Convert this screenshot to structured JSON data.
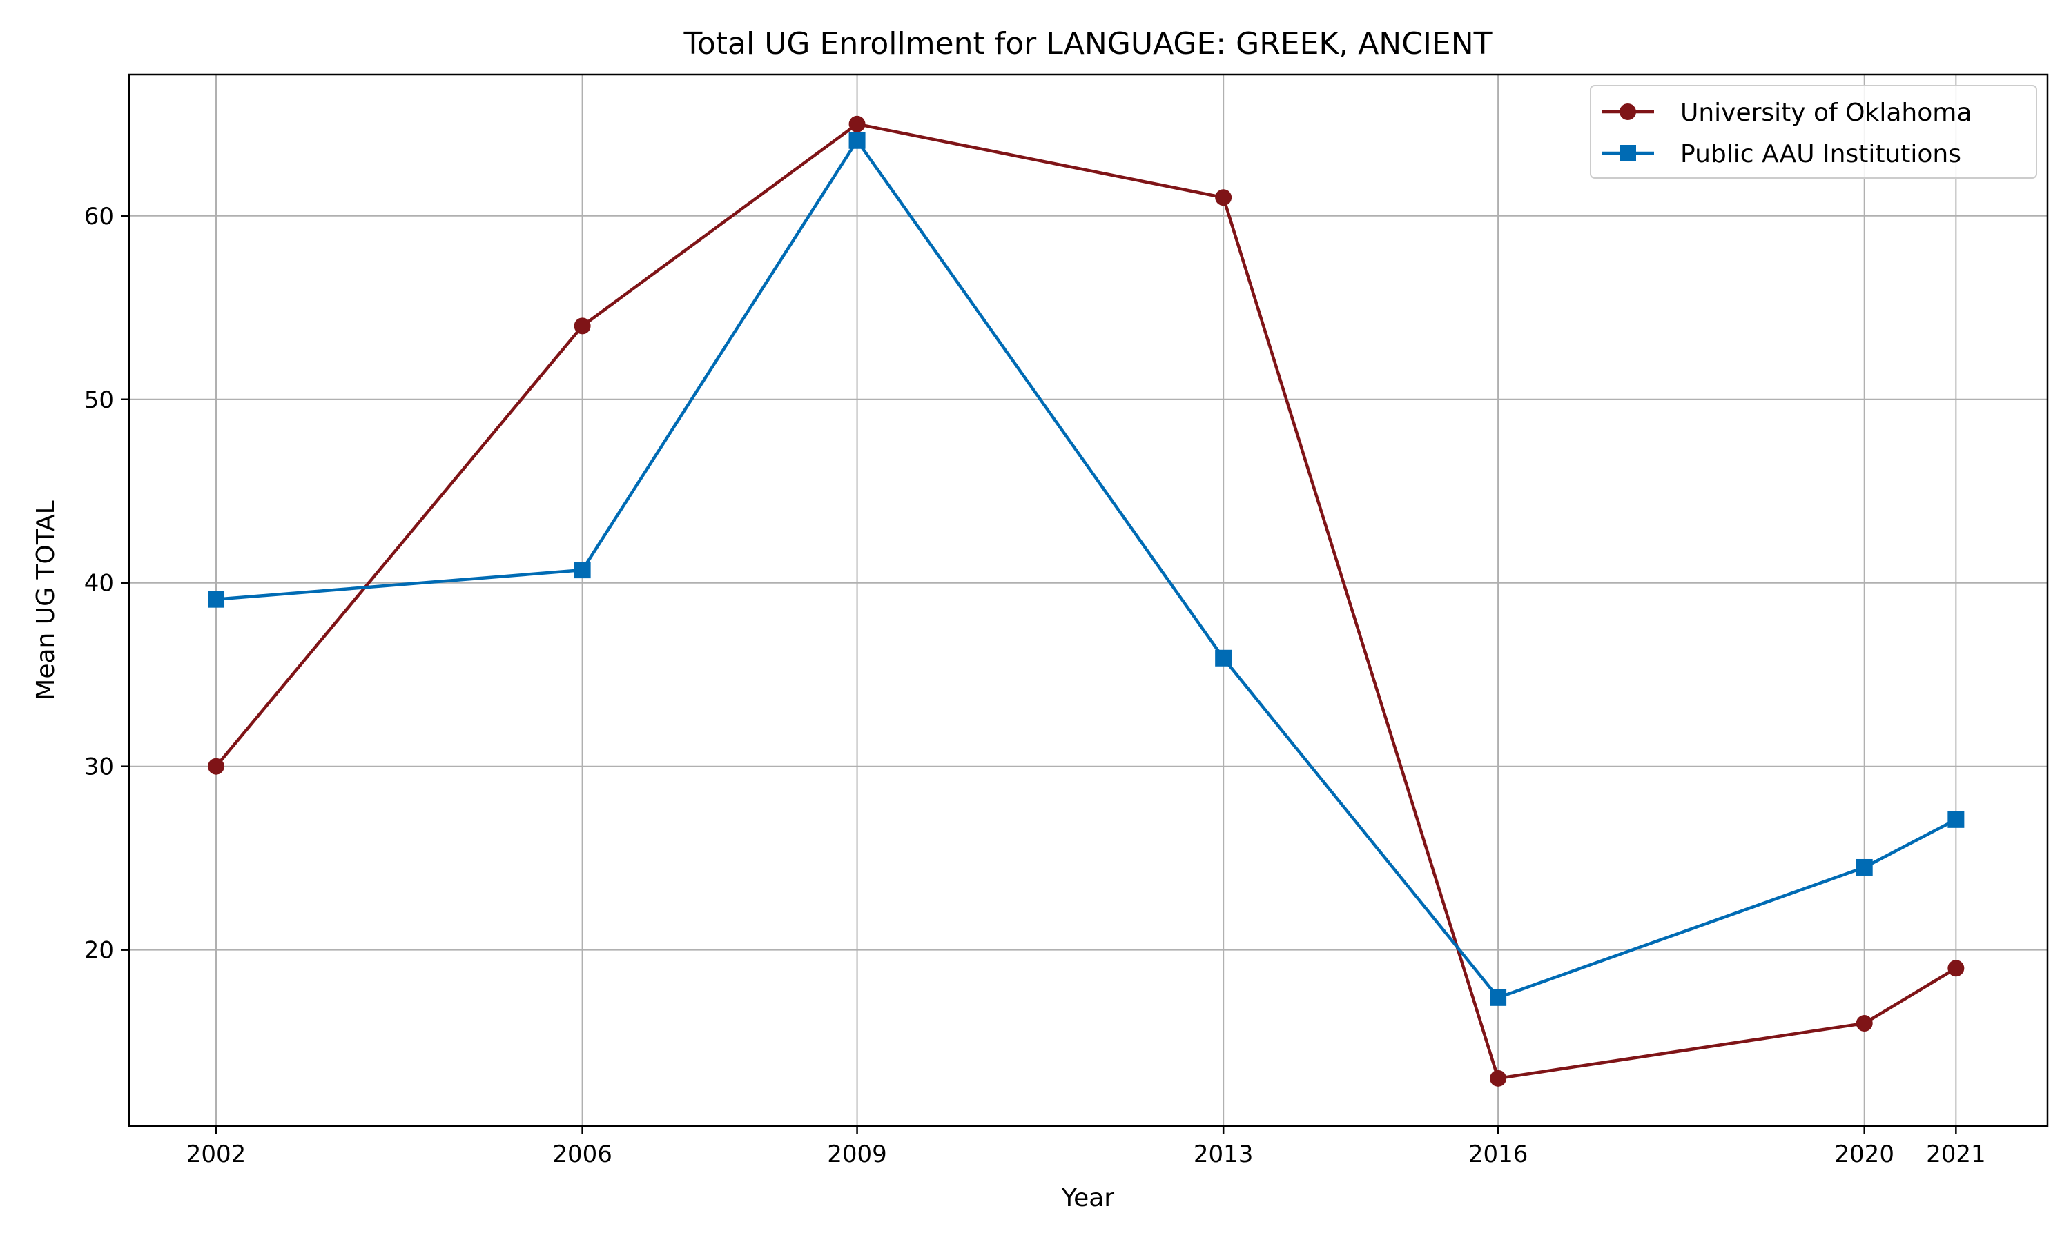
{
  "chart_data": {
    "type": "line",
    "title": "Total UG Enrollment for LANGUAGE: GREEK, ANCIENT",
    "xlabel": "Year",
    "ylabel": "Mean UG TOTAL",
    "x": [
      2002,
      2006,
      2009,
      2013,
      2016,
      2020,
      2021
    ],
    "xticks": [
      "2002",
      "2006",
      "2009",
      "2013",
      "2016",
      "2020",
      "2021"
    ],
    "xlim": [
      2001.05,
      2022.0
    ],
    "yticks": [
      20,
      30,
      40,
      50,
      60
    ],
    "ylim": [
      10.4,
      67.7
    ],
    "grid": true,
    "legend_position": "upper right",
    "series": [
      {
        "name": "University of Oklahoma",
        "color": "#7f1417",
        "marker": "circle",
        "values": [
          30,
          54,
          65,
          61,
          13,
          16,
          19
        ]
      },
      {
        "name": "Public AAU Institutions",
        "color": "#006bb4",
        "marker": "square",
        "values": [
          39.1,
          40.7,
          64.1,
          35.9,
          17.4,
          24.5,
          27.1
        ]
      }
    ]
  }
}
